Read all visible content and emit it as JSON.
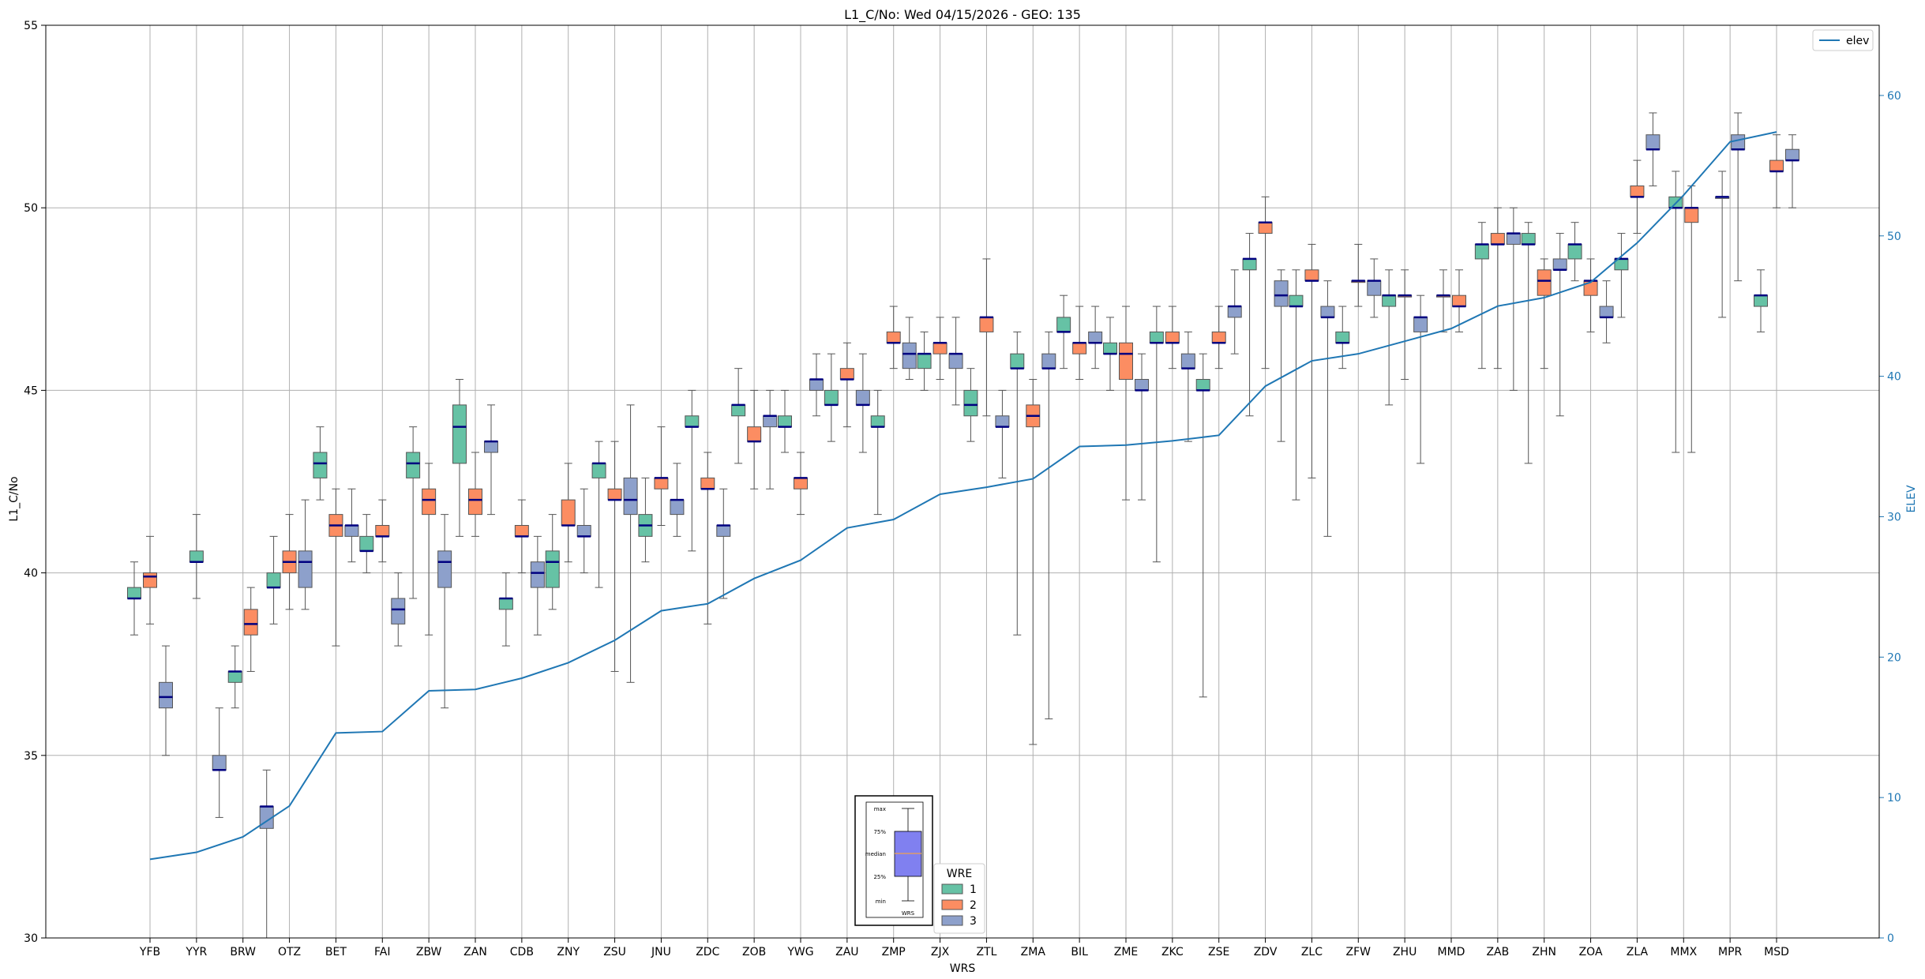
{
  "chart_data": {
    "type": "box",
    "title": "L1_C/No: Wed 04/15/2026 - GEO: 135",
    "xlabel": "WRS",
    "ylabel": "L1_C/No",
    "y2label": "ELEV",
    "ylim": [
      30,
      55
    ],
    "y2lim": [
      0,
      65
    ],
    "yticks": [
      30,
      35,
      40,
      45,
      50,
      55
    ],
    "y2ticks": [
      0,
      10,
      20,
      30,
      40,
      50,
      60
    ],
    "grid": true,
    "categories": [
      "YFB",
      "YYR",
      "BRW",
      "OTZ",
      "BET",
      "FAI",
      "ZBW",
      "ZAN",
      "CDB",
      "ZNY",
      "ZSU",
      "JNU",
      "ZDC",
      "ZOB",
      "YWG",
      "ZAU",
      "ZMP",
      "ZJX",
      "ZTL",
      "ZMA",
      "BIL",
      "ZME",
      "ZKC",
      "ZSE",
      "ZDV",
      "ZLC",
      "ZFW",
      "ZHU",
      "MMD",
      "ZAB",
      "ZHN",
      "ZOA",
      "ZLA",
      "MMX",
      "MPR",
      "MSD"
    ],
    "box_colors": {
      "1": "#66c2a5",
      "2": "#fc8d62",
      "3": "#8da0cb"
    },
    "line_color": "#1f77b4",
    "elev_line": {
      "name": "elev",
      "values": [
        5.6,
        6.1,
        7.2,
        9.4,
        14.6,
        14.7,
        17.6,
        17.7,
        18.5,
        19.6,
        21.2,
        23.3,
        23.8,
        25.6,
        26.9,
        29.2,
        29.8,
        31.6,
        32.1,
        32.7,
        35.0,
        35.1,
        35.4,
        35.8,
        39.3,
        41.1,
        41.6,
        42.5,
        43.4,
        45.0,
        45.6,
        46.7,
        49.5,
        52.9,
        56.7,
        57.4
      ]
    },
    "boxes": [
      {
        "station": "YFB",
        "wre": 1,
        "min": 38.3,
        "q1": 39.3,
        "median": 39.3,
        "q3": 39.6,
        "max": 40.3
      },
      {
        "station": "YFB",
        "wre": 2,
        "min": 38.6,
        "q1": 39.6,
        "median": 39.9,
        "q3": 40.0,
        "max": 41.0
      },
      {
        "station": "YFB",
        "wre": 3,
        "min": 35.0,
        "q1": 36.3,
        "median": 36.6,
        "q3": 37.0,
        "max": 38.0
      },
      {
        "station": "YYR",
        "wre": 1,
        "min": 39.3,
        "q1": 40.3,
        "median": 40.3,
        "q3": 40.6,
        "max": 41.6
      },
      {
        "station": "BRW",
        "wre": 3,
        "min": 33.3,
        "q1": 34.6,
        "median": 34.6,
        "q3": 35.0,
        "max": 36.3
      },
      {
        "station": "BRW",
        "wre": 1,
        "min": 36.3,
        "q1": 37.0,
        "median": 37.3,
        "q3": 37.3,
        "max": 38.0
      },
      {
        "station": "BRW",
        "wre": 2,
        "min": 37.3,
        "q1": 38.3,
        "median": 38.6,
        "q3": 39.0,
        "max": 39.6
      },
      {
        "station": "BRW",
        "wre": 3,
        "min": 29.6,
        "q1": 33.0,
        "median": 33.6,
        "q3": 33.6,
        "max": 34.6
      },
      {
        "station": "OTZ",
        "wre": 1,
        "min": 38.6,
        "q1": 39.6,
        "median": 39.6,
        "q3": 40.0,
        "max": 41.0
      },
      {
        "station": "OTZ",
        "wre": 2,
        "min": 39.0,
        "q1": 40.0,
        "median": 40.3,
        "q3": 40.6,
        "max": 41.6
      },
      {
        "station": "OTZ",
        "wre": 3,
        "min": 39.0,
        "q1": 39.6,
        "median": 40.3,
        "q3": 40.6,
        "max": 42.0
      },
      {
        "station": "BET",
        "wre": 1,
        "min": 42.0,
        "q1": 42.6,
        "median": 43.0,
        "q3": 43.3,
        "max": 44.0
      },
      {
        "station": "BET",
        "wre": 2,
        "min": 38.0,
        "q1": 41.0,
        "median": 41.3,
        "q3": 41.6,
        "max": 42.3
      },
      {
        "station": "BET",
        "wre": 3,
        "min": 40.3,
        "q1": 41.0,
        "median": 41.3,
        "q3": 41.3,
        "max": 42.3
      },
      {
        "station": "FAI",
        "wre": 1,
        "min": 40.0,
        "q1": 40.6,
        "median": 40.6,
        "q3": 41.0,
        "max": 41.6
      },
      {
        "station": "FAI",
        "wre": 2,
        "min": 40.3,
        "q1": 41.0,
        "median": 41.0,
        "q3": 41.3,
        "max": 42.0
      },
      {
        "station": "FAI",
        "wre": 3,
        "min": 38.0,
        "q1": 38.6,
        "median": 39.0,
        "q3": 39.3,
        "max": 40.0
      },
      {
        "station": "ZBW",
        "wre": 1,
        "min": 39.3,
        "q1": 42.6,
        "median": 43.0,
        "q3": 43.3,
        "max": 44.0
      },
      {
        "station": "ZBW",
        "wre": 2,
        "min": 38.3,
        "q1": 41.6,
        "median": 42.0,
        "q3": 42.3,
        "max": 43.0
      },
      {
        "station": "ZBW",
        "wre": 3,
        "min": 36.3,
        "q1": 39.6,
        "median": 40.3,
        "q3": 40.6,
        "max": 41.6
      },
      {
        "station": "ZAN",
        "wre": 1,
        "min": 41.0,
        "q1": 43.0,
        "median": 44.0,
        "q3": 44.6,
        "max": 45.3
      },
      {
        "station": "ZAN",
        "wre": 2,
        "min": 41.0,
        "q1": 41.6,
        "median": 42.0,
        "q3": 42.3,
        "max": 43.3
      },
      {
        "station": "ZAN",
        "wre": 3,
        "min": 41.6,
        "q1": 43.3,
        "median": 43.6,
        "q3": 43.6,
        "max": 44.6
      },
      {
        "station": "CDB",
        "wre": 1,
        "min": 38.0,
        "q1": 39.0,
        "median": 39.3,
        "q3": 39.3,
        "max": 40.0
      },
      {
        "station": "CDB",
        "wre": 2,
        "min": 40.0,
        "q1": 41.0,
        "median": 41.0,
        "q3": 41.3,
        "max": 42.0
      },
      {
        "station": "CDB",
        "wre": 3,
        "min": 38.3,
        "q1": 39.6,
        "median": 40.0,
        "q3": 40.3,
        "max": 41.0
      },
      {
        "station": "ZNY",
        "wre": 1,
        "min": 39.0,
        "q1": 39.6,
        "median": 40.3,
        "q3": 40.6,
        "max": 41.6
      },
      {
        "station": "ZNY",
        "wre": 2,
        "min": 40.3,
        "q1": 41.3,
        "median": 41.3,
        "q3": 42.0,
        "max": 43.0
      },
      {
        "station": "ZNY",
        "wre": 3,
        "min": 40.0,
        "q1": 41.0,
        "median": 41.0,
        "q3": 41.3,
        "max": 42.3
      },
      {
        "station": "ZSU",
        "wre": 1,
        "min": 39.6,
        "q1": 42.6,
        "median": 43.0,
        "q3": 43.0,
        "max": 43.6
      },
      {
        "station": "ZSU",
        "wre": 2,
        "min": 37.3,
        "q1": 42.0,
        "median": 42.0,
        "q3": 42.3,
        "max": 43.6
      },
      {
        "station": "ZSU",
        "wre": 3,
        "min": 37.0,
        "q1": 41.6,
        "median": 42.0,
        "q3": 42.6,
        "max": 44.6
      },
      {
        "station": "JNU",
        "wre": 1,
        "min": 40.3,
        "q1": 41.0,
        "median": 41.3,
        "q3": 41.6,
        "max": 42.6
      },
      {
        "station": "JNU",
        "wre": 2,
        "min": 41.3,
        "q1": 42.3,
        "median": 42.6,
        "q3": 42.6,
        "max": 44.0
      },
      {
        "station": "JNU",
        "wre": 3,
        "min": 41.0,
        "q1": 41.6,
        "median": 42.0,
        "q3": 42.0,
        "max": 43.0
      },
      {
        "station": "ZDC",
        "wre": 1,
        "min": 40.6,
        "q1": 44.0,
        "median": 44.0,
        "q3": 44.3,
        "max": 45.0
      },
      {
        "station": "ZDC",
        "wre": 2,
        "min": 38.6,
        "q1": 42.3,
        "median": 42.3,
        "q3": 42.6,
        "max": 43.3
      },
      {
        "station": "ZDC",
        "wre": 3,
        "min": 39.3,
        "q1": 41.0,
        "median": 41.3,
        "q3": 41.3,
        "max": 42.3
      },
      {
        "station": "ZOB",
        "wre": 1,
        "min": 43.0,
        "q1": 44.3,
        "median": 44.6,
        "q3": 44.6,
        "max": 45.6
      },
      {
        "station": "ZOB",
        "wre": 2,
        "min": 42.3,
        "q1": 43.6,
        "median": 43.6,
        "q3": 44.0,
        "max": 45.0
      },
      {
        "station": "ZOB",
        "wre": 3,
        "min": 42.3,
        "q1": 44.0,
        "median": 44.3,
        "q3": 44.3,
        "max": 45.0
      },
      {
        "station": "YWG",
        "wre": 1,
        "min": 43.3,
        "q1": 44.0,
        "median": 44.0,
        "q3": 44.3,
        "max": 45.0
      },
      {
        "station": "YWG",
        "wre": 2,
        "min": 41.6,
        "q1": 42.3,
        "median": 42.6,
        "q3": 42.6,
        "max": 43.3
      },
      {
        "station": "YWG",
        "wre": 3,
        "min": 44.3,
        "q1": 45.0,
        "median": 45.3,
        "q3": 45.3,
        "max": 46.0
      },
      {
        "station": "ZAU",
        "wre": 1,
        "min": 43.6,
        "q1": 44.6,
        "median": 44.6,
        "q3": 45.0,
        "max": 46.0
      },
      {
        "station": "ZAU",
        "wre": 2,
        "min": 44.0,
        "q1": 45.3,
        "median": 45.3,
        "q3": 45.6,
        "max": 46.3
      },
      {
        "station": "ZAU",
        "wre": 3,
        "min": 43.3,
        "q1": 44.6,
        "median": 44.6,
        "q3": 45.0,
        "max": 46.0
      },
      {
        "station": "ZMP",
        "wre": 1,
        "min": 41.6,
        "q1": 44.0,
        "median": 44.0,
        "q3": 44.3,
        "max": 45.0
      },
      {
        "station": "ZMP",
        "wre": 2,
        "min": 45.6,
        "q1": 46.3,
        "median": 46.3,
        "q3": 46.6,
        "max": 47.3
      },
      {
        "station": "ZMP",
        "wre": 3,
        "min": 45.3,
        "q1": 45.6,
        "median": 46.0,
        "q3": 46.3,
        "max": 47.0
      },
      {
        "station": "ZJX",
        "wre": 1,
        "min": 45.0,
        "q1": 45.6,
        "median": 46.0,
        "q3": 46.0,
        "max": 46.6
      },
      {
        "station": "ZJX",
        "wre": 2,
        "min": 45.3,
        "q1": 46.0,
        "median": 46.3,
        "q3": 46.3,
        "max": 47.0
      },
      {
        "station": "ZJX",
        "wre": 3,
        "min": 44.6,
        "q1": 45.6,
        "median": 46.0,
        "q3": 46.0,
        "max": 47.0
      },
      {
        "station": "ZTL",
        "wre": 1,
        "min": 43.6,
        "q1": 44.3,
        "median": 44.6,
        "q3": 45.0,
        "max": 45.6
      },
      {
        "station": "ZTL",
        "wre": 2,
        "min": 44.3,
        "q1": 46.6,
        "median": 47.0,
        "q3": 47.0,
        "max": 48.6
      },
      {
        "station": "ZTL",
        "wre": 3,
        "min": 42.6,
        "q1": 44.0,
        "median": 44.0,
        "q3": 44.3,
        "max": 45.0
      },
      {
        "station": "ZMA",
        "wre": 1,
        "min": 38.3,
        "q1": 45.6,
        "median": 45.6,
        "q3": 46.0,
        "max": 46.6
      },
      {
        "station": "ZMA",
        "wre": 2,
        "min": 35.3,
        "q1": 44.0,
        "median": 44.3,
        "q3": 44.6,
        "max": 45.3
      },
      {
        "station": "ZMA",
        "wre": 3,
        "min": 36.0,
        "q1": 45.6,
        "median": 45.6,
        "q3": 46.0,
        "max": 46.6
      },
      {
        "station": "BIL",
        "wre": 1,
        "min": 45.6,
        "q1": 46.6,
        "median": 46.6,
        "q3": 47.0,
        "max": 47.6
      },
      {
        "station": "BIL",
        "wre": 2,
        "min": 45.3,
        "q1": 46.0,
        "median": 46.3,
        "q3": 46.3,
        "max": 47.3
      },
      {
        "station": "BIL",
        "wre": 3,
        "min": 45.6,
        "q1": 46.3,
        "median": 46.3,
        "q3": 46.6,
        "max": 47.3
      },
      {
        "station": "ZME",
        "wre": 1,
        "min": 45.0,
        "q1": 46.0,
        "median": 46.0,
        "q3": 46.3,
        "max": 47.0
      },
      {
        "station": "ZME",
        "wre": 2,
        "min": 42.0,
        "q1": 45.3,
        "median": 46.0,
        "q3": 46.3,
        "max": 47.3
      },
      {
        "station": "ZME",
        "wre": 3,
        "min": 42.0,
        "q1": 45.0,
        "median": 45.0,
        "q3": 45.3,
        "max": 46.0
      },
      {
        "station": "ZKC",
        "wre": 1,
        "min": 40.3,
        "q1": 46.3,
        "median": 46.3,
        "q3": 46.6,
        "max": 47.3
      },
      {
        "station": "ZKC",
        "wre": 2,
        "min": 45.6,
        "q1": 46.3,
        "median": 46.3,
        "q3": 46.6,
        "max": 47.3
      },
      {
        "station": "ZKC",
        "wre": 3,
        "min": 43.6,
        "q1": 45.6,
        "median": 45.6,
        "q3": 46.0,
        "max": 46.6
      },
      {
        "station": "ZSE",
        "wre": 1,
        "min": 36.6,
        "q1": 45.0,
        "median": 45.0,
        "q3": 45.3,
        "max": 46.0
      },
      {
        "station": "ZSE",
        "wre": 2,
        "min": 45.6,
        "q1": 46.3,
        "median": 46.3,
        "q3": 46.6,
        "max": 47.3
      },
      {
        "station": "ZSE",
        "wre": 3,
        "min": 46.0,
        "q1": 47.0,
        "median": 47.3,
        "q3": 47.3,
        "max": 48.3
      },
      {
        "station": "ZDV",
        "wre": 1,
        "min": 44.3,
        "q1": 48.3,
        "median": 48.6,
        "q3": 48.6,
        "max": 49.3
      },
      {
        "station": "ZDV",
        "wre": 2,
        "min": 45.6,
        "q1": 49.3,
        "median": 49.6,
        "q3": 49.6,
        "max": 50.3
      },
      {
        "station": "ZDV",
        "wre": 3,
        "min": 43.6,
        "q1": 47.3,
        "median": 47.6,
        "q3": 48.0,
        "max": 48.3
      },
      {
        "station": "ZLC",
        "wre": 1,
        "min": 42.0,
        "q1": 47.3,
        "median": 47.3,
        "q3": 47.6,
        "max": 48.3
      },
      {
        "station": "ZLC",
        "wre": 2,
        "min": 42.6,
        "q1": 48.0,
        "median": 48.0,
        "q3": 48.3,
        "max": 49.0
      },
      {
        "station": "ZLC",
        "wre": 3,
        "min": 41.0,
        "q1": 47.0,
        "median": 47.0,
        "q3": 47.3,
        "max": 48.0
      },
      {
        "station": "ZFW",
        "wre": 1,
        "min": 45.6,
        "q1": 46.3,
        "median": 46.3,
        "q3": 46.6,
        "max": 47.3
      },
      {
        "station": "ZFW",
        "wre": 2,
        "min": 47.3,
        "q1": 48.0,
        "median": 48.0,
        "q3": 48.0,
        "max": 49.0
      },
      {
        "station": "ZFW",
        "wre": 3,
        "min": 47.0,
        "q1": 47.6,
        "median": 48.0,
        "q3": 48.0,
        "max": 48.6
      },
      {
        "station": "ZHU",
        "wre": 1,
        "min": 44.6,
        "q1": 47.3,
        "median": 47.6,
        "q3": 47.6,
        "max": 48.3
      },
      {
        "station": "ZHU",
        "wre": 2,
        "min": 45.3,
        "q1": 47.6,
        "median": 47.6,
        "q3": 47.6,
        "max": 48.3
      },
      {
        "station": "ZHU",
        "wre": 3,
        "min": 43.0,
        "q1": 46.6,
        "median": 47.0,
        "q3": 47.0,
        "max": 47.6
      },
      {
        "station": "MMD",
        "wre": 2,
        "min": 46.6,
        "q1": 47.6,
        "median": 47.6,
        "q3": 47.6,
        "max": 48.3
      },
      {
        "station": "MMD",
        "wre": 2,
        "min": 46.6,
        "q1": 47.3,
        "median": 47.3,
        "q3": 47.6,
        "max": 48.3
      },
      {
        "station": "ZAB",
        "wre": 1,
        "min": 45.6,
        "q1": 48.6,
        "median": 49.0,
        "q3": 49.0,
        "max": 49.6
      },
      {
        "station": "ZAB",
        "wre": 2,
        "min": 45.6,
        "q1": 49.0,
        "median": 49.0,
        "q3": 49.3,
        "max": 50.0
      },
      {
        "station": "ZAB",
        "wre": 3,
        "min": 45.0,
        "q1": 49.0,
        "median": 49.3,
        "q3": 49.3,
        "max": 50.0
      },
      {
        "station": "ZHN",
        "wre": 1,
        "min": 43.0,
        "q1": 49.0,
        "median": 49.0,
        "q3": 49.3,
        "max": 49.6
      },
      {
        "station": "ZHN",
        "wre": 2,
        "min": 45.6,
        "q1": 47.6,
        "median": 48.0,
        "q3": 48.3,
        "max": 48.6
      },
      {
        "station": "ZHN",
        "wre": 3,
        "min": 44.3,
        "q1": 48.3,
        "median": 48.3,
        "q3": 48.6,
        "max": 49.3
      },
      {
        "station": "ZOA",
        "wre": 1,
        "min": 48.0,
        "q1": 48.6,
        "median": 49.0,
        "q3": 49.0,
        "max": 49.6
      },
      {
        "station": "ZOA",
        "wre": 2,
        "min": 46.6,
        "q1": 47.6,
        "median": 48.0,
        "q3": 48.0,
        "max": 48.6
      },
      {
        "station": "ZOA",
        "wre": 3,
        "min": 46.3,
        "q1": 47.0,
        "median": 47.0,
        "q3": 47.3,
        "max": 48.0
      },
      {
        "station": "ZLA",
        "wre": 1,
        "min": 47.0,
        "q1": 48.3,
        "median": 48.6,
        "q3": 48.6,
        "max": 49.3
      },
      {
        "station": "ZLA",
        "wre": 2,
        "min": 49.3,
        "q1": 50.3,
        "median": 50.3,
        "q3": 50.6,
        "max": 51.3
      },
      {
        "station": "ZLA",
        "wre": 3,
        "min": 50.6,
        "q1": 51.6,
        "median": 51.6,
        "q3": 52.0,
        "max": 52.6
      },
      {
        "station": "MMX",
        "wre": 1,
        "min": 43.3,
        "q1": 50.0,
        "median": 50.0,
        "q3": 50.3,
        "max": 51.0
      },
      {
        "station": "MMX",
        "wre": 2,
        "min": 43.3,
        "q1": 49.6,
        "median": 50.0,
        "q3": 50.0,
        "max": 50.6
      },
      {
        "station": "MPR",
        "wre": 3,
        "min": 47.0,
        "q1": 50.3,
        "median": 50.3,
        "q3": 50.3,
        "max": 51.0
      },
      {
        "station": "MPR",
        "wre": 3,
        "min": 48.0,
        "q1": 51.6,
        "median": 51.6,
        "q3": 52.0,
        "max": 52.6
      },
      {
        "station": "MSD",
        "wre": 1,
        "min": 46.6,
        "q1": 47.3,
        "median": 47.6,
        "q3": 47.6,
        "max": 48.3
      },
      {
        "station": "MSD",
        "wre": 2,
        "min": 50.0,
        "q1": 51.0,
        "median": 51.0,
        "q3": 51.3,
        "max": 52.0
      },
      {
        "station": "MSD",
        "wre": 3,
        "min": 50.0,
        "q1": 51.3,
        "median": 51.3,
        "q3": 51.6,
        "max": 52.0
      }
    ],
    "legend_elev": {
      "placement": "top-right",
      "label": "elev"
    },
    "legend_wre": {
      "placement": "bottom-center",
      "title": "WRE",
      "entries": [
        "1",
        "2",
        "3"
      ]
    },
    "key_inset": {
      "placement": "bottom-center",
      "labels": [
        "max",
        "75%",
        "median",
        "25%",
        "min"
      ],
      "axis_label": "WRS"
    }
  }
}
